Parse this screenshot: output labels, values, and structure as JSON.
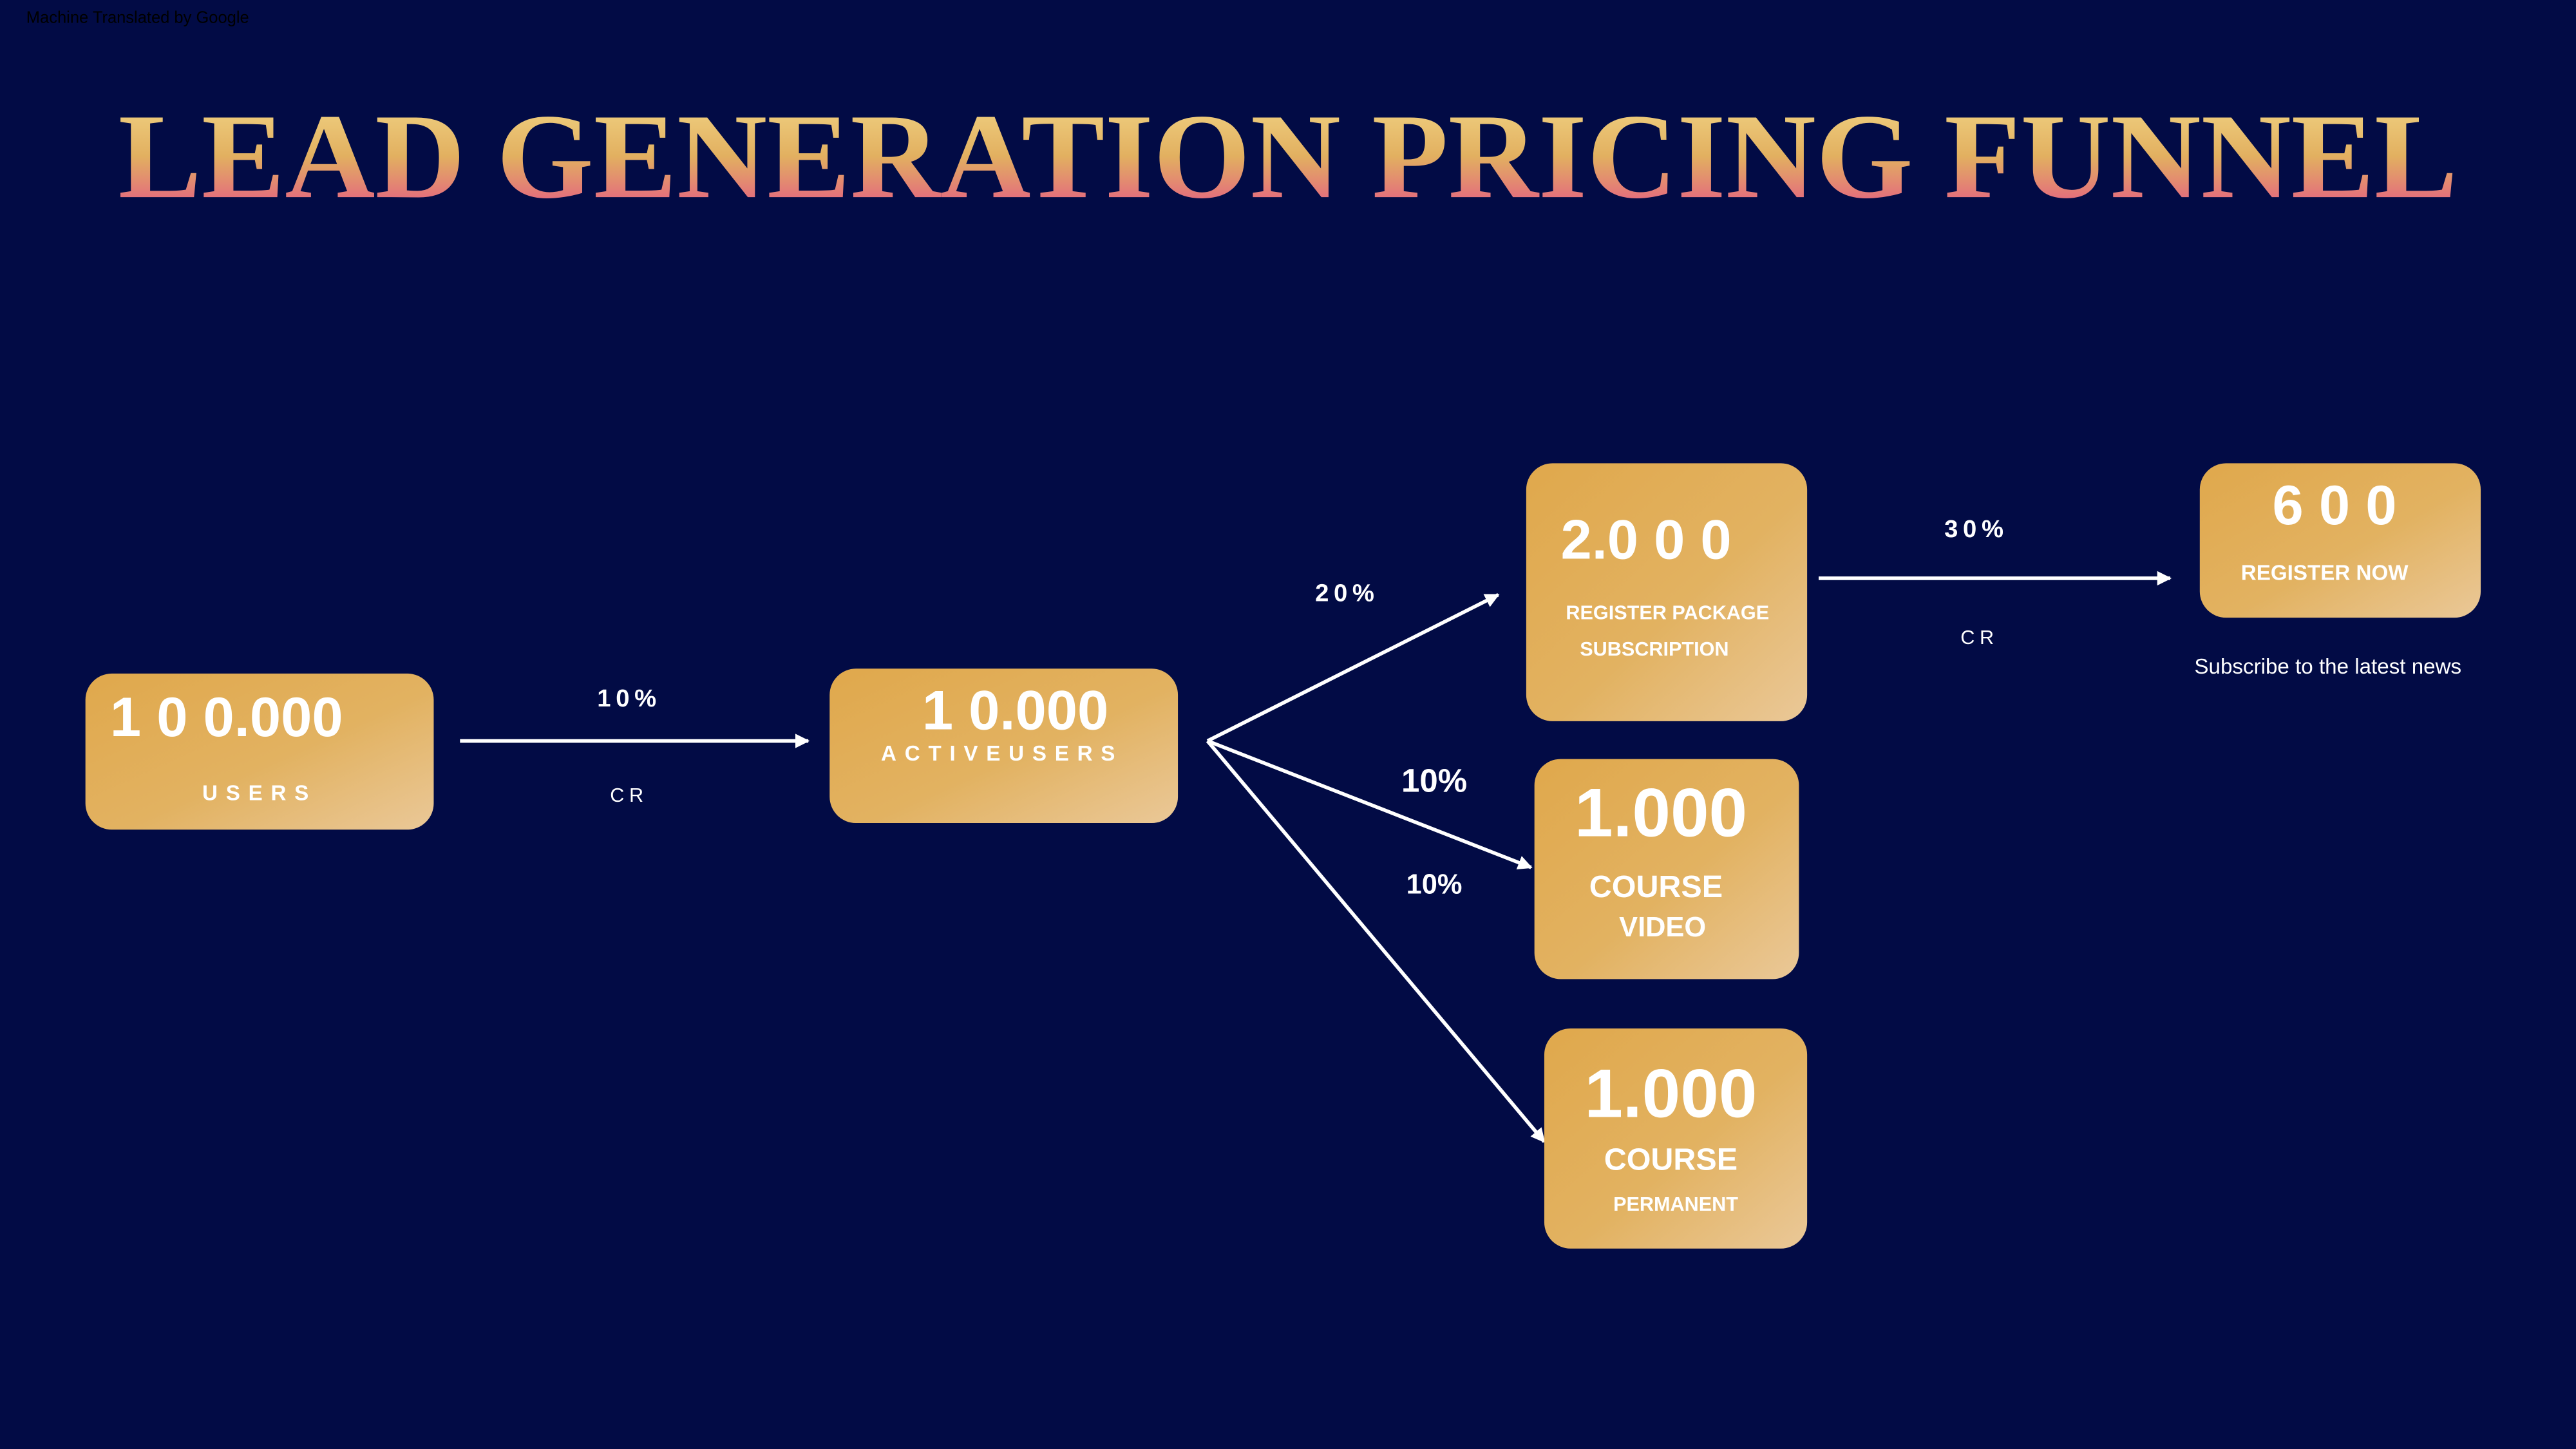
{
  "header": {
    "watermark": "Machine Translated by Google",
    "title": "LEAD GENERATION PRICING FUNNEL"
  },
  "nodes": [
    {
      "value": "1 0 0.000",
      "label": [
        "USERS"
      ]
    },
    {
      "value": "1 0.000",
      "label": [
        "ACTIVEUSERS"
      ]
    },
    {
      "value": "2.0 0 0",
      "label": [
        "REGISTER PACKAGE",
        "SUBSCRIPTION"
      ]
    },
    {
      "value": "1.000",
      "label": [
        "COURSE",
        "VIDEO"
      ]
    },
    {
      "value": "1.000",
      "label": [
        "COURSE",
        "PERMANENT"
      ]
    },
    {
      "value": "6 0 0",
      "label": [
        "REGISTER NOW"
      ],
      "note": "Subscribe to the latest news"
    }
  ],
  "edges": [
    {
      "label": "10%",
      "sublabel": "CR"
    },
    {
      "label": "20%"
    },
    {
      "label": "10%"
    },
    {
      "label": "10%"
    },
    {
      "label": "30%",
      "sublabel": "CR"
    }
  ]
}
